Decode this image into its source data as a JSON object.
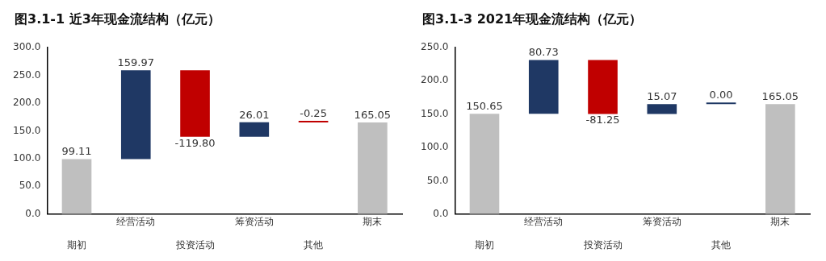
{
  "chart_data": [
    {
      "type": "bar",
      "title": "图3.1-1 近3年现金流结构（亿元）",
      "categories": [
        "期初",
        "经营活动",
        "投资活动",
        "筹资活动",
        "其他",
        "期末"
      ],
      "values": [
        99.11,
        159.97,
        -119.8,
        26.01,
        -0.25,
        165.05
      ],
      "base": [
        0,
        99.11,
        259.08,
        139.28,
        165.29,
        0
      ],
      "colors": [
        "#bfbfbf",
        "#1f3864",
        "#c00000",
        "#1f3864",
        "#c00000",
        "#bfbfbf"
      ],
      "value_labels": [
        "99.11",
        "159.97",
        "-119.80",
        "26.01",
        "-0.25",
        "165.05"
      ],
      "ylim": [
        0,
        300
      ],
      "yticks": [
        {
          "value": 0,
          "label": "0.0"
        },
        {
          "value": 50,
          "label": "50.0"
        },
        {
          "value": 100,
          "label": "100.0"
        },
        {
          "value": 150,
          "label": "150.0"
        },
        {
          "value": 200,
          "label": "200.0"
        },
        {
          "value": 250,
          "label": "250.0"
        },
        {
          "value": 300,
          "label": "300.0"
        }
      ],
      "grid": false,
      "legend": false
    },
    {
      "type": "bar",
      "title": "图3.1-3 2021年现金流结构（亿元）",
      "categories": [
        "期初",
        "经营活动",
        "投资活动",
        "筹资活动",
        "其他",
        "期末"
      ],
      "values": [
        150.65,
        80.73,
        -81.25,
        15.07,
        0,
        165.05
      ],
      "base": [
        0,
        150.65,
        231.38,
        150.13,
        165.2,
        0
      ],
      "colors": [
        "#bfbfbf",
        "#1f3864",
        "#c00000",
        "#1f3864",
        "#1f3864",
        "#bfbfbf"
      ],
      "value_labels": [
        "150.65",
        "80.73",
        "-81.25",
        "15.07",
        "0.00",
        "165.05"
      ],
      "ylim": [
        0,
        250
      ],
      "yticks": [
        {
          "value": 0,
          "label": "0.0"
        },
        {
          "value": 50,
          "label": "50.0"
        },
        {
          "value": 100,
          "label": "100.0"
        },
        {
          "value": 150,
          "label": "150.0"
        },
        {
          "value": 200,
          "label": "200.0"
        },
        {
          "value": 250,
          "label": "250.0"
        }
      ],
      "grid": false,
      "legend": false
    }
  ]
}
